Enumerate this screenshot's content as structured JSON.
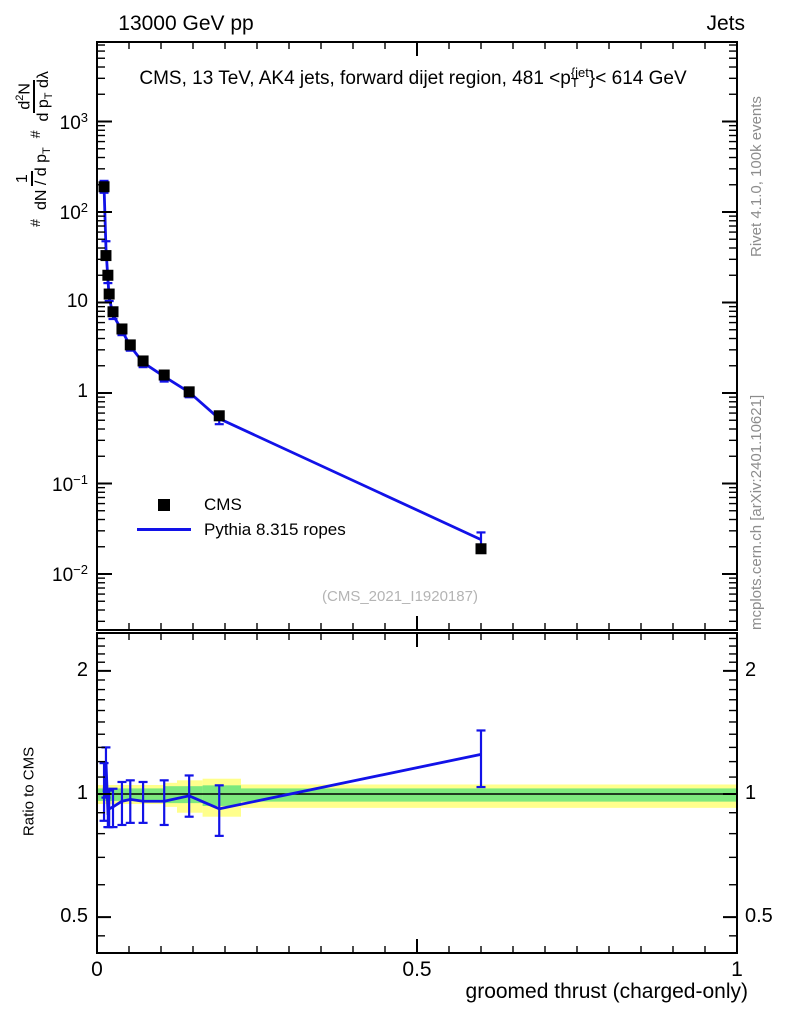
{
  "header": {
    "left": "13000 GeV pp",
    "right": "Jets"
  },
  "title": {
    "pre": "CMS, 13 TeV, AK4 jets, forward dijet region, 481 <p",
    "sup": "{jet",
    "sub": "T",
    "post": "}< 614 GeV"
  },
  "watermark": "(CMS_2021_I1920187)",
  "side_notes": {
    "top": "Rivet 4.1.0,  100k events",
    "bottom": "mcplots.cern.ch [arXiv:2401.10621]"
  },
  "legend": [
    {
      "label": "CMS",
      "marker": "square",
      "color": "#000000"
    },
    {
      "label": "Pythia 8.315 ropes",
      "marker": "line",
      "color": "#1212e8"
    }
  ],
  "axes": {
    "x": {
      "title": "groomed thrust (charged-only)",
      "range": [
        0,
        1
      ],
      "minor_step": 0.05,
      "ticks": [
        {
          "label": "0",
          "value": 0
        },
        {
          "label": "0.5",
          "value": 0.5
        },
        {
          "label": "1",
          "value": 1
        }
      ]
    },
    "y_main": {
      "scale": "log",
      "ticks": [
        {
          "base": "10",
          "exp": "3",
          "value": 1000
        },
        {
          "base": "10",
          "exp": "2",
          "value": 100
        },
        {
          "base": "10",
          "exp": "",
          "value": 10
        },
        {
          "base": "1",
          "exp": "",
          "value": 1
        },
        {
          "base": "10",
          "exp": "−1",
          "value": 0.1
        },
        {
          "base": "10",
          "exp": "−2",
          "value": 0.01
        }
      ]
    },
    "y_ratio": {
      "title": "Ratio to CMS",
      "scale": "log",
      "range": [
        0.41,
        2.47
      ],
      "ticks": [
        {
          "label": "2",
          "value": 2
        },
        {
          "label": "1",
          "value": 1
        },
        {
          "label": "0.5",
          "value": 0.5
        }
      ],
      "minor_ticks": [
        0.45,
        0.6,
        0.7,
        0.8,
        0.9,
        1.1,
        1.2,
        1.3,
        1.4,
        1.5,
        1.6,
        1.7,
        1.8,
        1.9,
        2.1,
        2.2,
        2.3,
        2.4
      ]
    },
    "y_main_title": {
      "hash1": "#",
      "frac1_num": "1",
      "frac1_den_base": "dN / d p",
      "frac1_den_sub": "T",
      "hash2": "#",
      "frac2_num_base": "d",
      "frac2_num_sup": "2",
      "frac2_num_tail": "N",
      "frac2_den_base": "d p",
      "frac2_den_sub": "T",
      "frac2_den_tail": " dλ"
    }
  },
  "colors": {
    "line": "#1212e8",
    "marker": "#000000",
    "band_yellow": "#ffff8c",
    "band_green": "#7de87d",
    "frame": "#000000",
    "watermark": "#b4b4b4",
    "side_note": "#8c8c8c"
  },
  "chart_data": [
    {
      "panel": "main",
      "type": "line",
      "title": "CMS, 13 TeV, AK4 jets, forward dijet region, 481 <p_T^{jet}< 614 GeV",
      "xlabel": "groomed thrust (charged-only)",
      "ylabel": "# 1/(dN/dp_T) # d^2N/(dp_T dλ)",
      "xlim": [
        0,
        1
      ],
      "ylim": [
        0.0024,
        7600
      ],
      "yscale": "log",
      "x": [
        0.011,
        0.014,
        0.017,
        0.019,
        0.025,
        0.039,
        0.052,
        0.072,
        0.105,
        0.144,
        0.191,
        0.6
      ],
      "series": [
        {
          "name": "CMS",
          "type": "scatter",
          "marker": "square",
          "y": [
            190,
            33,
            20,
            12.4,
            7.9,
            5.1,
            3.4,
            2.26,
            1.58,
            1.03,
            0.56,
            0.019
          ]
        },
        {
          "name": "Pythia 8.315 ropes",
          "type": "line",
          "y": [
            192,
            39.6,
            18.2,
            11.4,
            7.3,
            4.9,
            3.3,
            2.17,
            1.52,
            1.02,
            0.52,
            0.024
          ],
          "yerr_rel": [
            0.15,
            0.2,
            0.1,
            0.09,
            0.1,
            0.11,
            0.11,
            0.11,
            0.12,
            0.12,
            0.13,
            0.2
          ]
        }
      ],
      "legend_position": "left-middle"
    },
    {
      "panel": "ratio",
      "type": "line",
      "ylabel": "Ratio to CMS",
      "yscale": "log",
      "ylim": [
        0.41,
        2.47
      ],
      "reference_line": 1,
      "x": [
        0.011,
        0.014,
        0.017,
        0.019,
        0.025,
        0.039,
        0.052,
        0.072,
        0.105,
        0.144,
        0.191,
        0.6
      ],
      "series": [
        {
          "name": "Pythia 8.315 ropes / CMS",
          "y": [
            1.01,
            1.2,
            0.91,
            0.92,
            0.93,
            0.96,
            0.97,
            0.96,
            0.96,
            0.99,
            0.92,
            1.25
          ],
          "yerr_lo": [
            0.15,
            0.22,
            0.08,
            0.09,
            0.1,
            0.12,
            0.12,
            0.11,
            0.12,
            0.11,
            0.13,
            0.21
          ],
          "yerr_hi": [
            0.18,
            0.1,
            0.11,
            0.1,
            0.1,
            0.11,
            0.11,
            0.11,
            0.12,
            0.12,
            0.13,
            0.18
          ]
        }
      ],
      "bands": {
        "yellow": [
          {
            "x0": 0.0,
            "x1": 0.105,
            "lo": 0.945,
            "hi": 1.052
          },
          {
            "x0": 0.105,
            "x1": 0.125,
            "lo": 0.93,
            "hi": 1.065
          },
          {
            "x0": 0.125,
            "x1": 0.165,
            "lo": 0.9,
            "hi": 1.08
          },
          {
            "x0": 0.165,
            "x1": 0.225,
            "lo": 0.88,
            "hi": 1.09
          },
          {
            "x0": 0.225,
            "x1": 1.0,
            "lo": 0.925,
            "hi": 1.055
          }
        ],
        "green": [
          {
            "x0": 0.0,
            "x1": 0.105,
            "lo": 0.962,
            "hi": 1.032
          },
          {
            "x0": 0.105,
            "x1": 0.165,
            "lo": 0.95,
            "hi": 1.045
          },
          {
            "x0": 0.165,
            "x1": 0.225,
            "lo": 0.935,
            "hi": 1.05
          },
          {
            "x0": 0.225,
            "x1": 1.0,
            "lo": 0.958,
            "hi": 1.032
          }
        ]
      }
    }
  ]
}
